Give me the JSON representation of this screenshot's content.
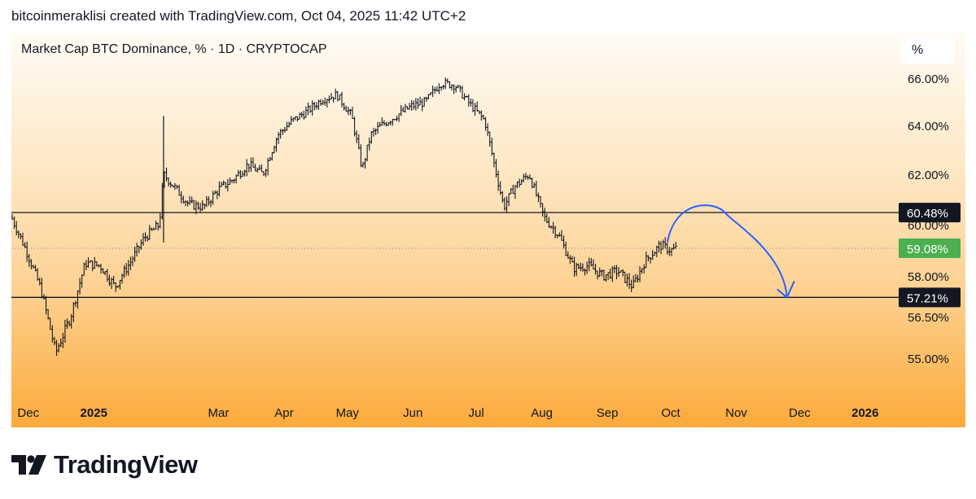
{
  "header": {
    "attribution": "bitcoinmeraklisi created with TradingView.com, Oct 04, 2025 11:42 UTC+2"
  },
  "chart": {
    "title": "Market Cap BTC Dominance, % · 1D · CRYPTOCAP",
    "scale_unit": "%",
    "colors": {
      "candle": "#131722",
      "arrow": "#2962ff",
      "current_price_badge": "#4caf50",
      "level_badge": "#131722",
      "background_top": "#fffcf6",
      "background_bottom": "#fcaa3a"
    }
  },
  "chart_data": {
    "type": "candlestick",
    "title": "Market Cap BTC Dominance, % · 1D · CRYPTOCAP",
    "xlabel": "",
    "ylabel": "",
    "x_tick_labels": [
      "Dec",
      "2025",
      "Mar",
      "Apr",
      "May",
      "Jun",
      "Jul",
      "Aug",
      "Sep",
      "Oct",
      "Nov",
      "Dec",
      "2026"
    ],
    "y_tick_labels": [
      "66.00%",
      "64.00%",
      "62.00%",
      "60.00%",
      "58.00%",
      "56.50%",
      "55.00%"
    ],
    "y_ticks": [
      66.0,
      64.0,
      62.0,
      60.0,
      58.0,
      56.5,
      55.0
    ],
    "ylim": [
      53.9,
      67.2
    ],
    "x_range": [
      "2024-11-23",
      "2026-01-08"
    ],
    "grid": false,
    "legend": "none",
    "horizontal_levels": [
      {
        "value": 60.48,
        "label": "60.48%",
        "style": "solid"
      },
      {
        "value": 57.21,
        "label": "57.21%",
        "style": "solid"
      }
    ],
    "current_price": {
      "value": 59.08,
      "label": "59.08%",
      "style": "dotted"
    },
    "series": [
      {
        "x": [
          "2024-11-23",
          "2024-11-30",
          "2024-12-07",
          "2024-12-14",
          "2024-12-21",
          "2024-12-28",
          "2025-01-04",
          "2025-01-11",
          "2025-01-18",
          "2025-01-25",
          "2025-02-01",
          "2025-02-03",
          "2025-02-08",
          "2025-02-15",
          "2025-02-22",
          "2025-03-01",
          "2025-03-08",
          "2025-03-15",
          "2025-03-22",
          "2025-03-29",
          "2025-04-05",
          "2025-04-12",
          "2025-04-19",
          "2025-04-26",
          "2025-05-03",
          "2025-05-08",
          "2025-05-12",
          "2025-05-17",
          "2025-05-24",
          "2025-05-31",
          "2025-06-07",
          "2025-06-14",
          "2025-06-21",
          "2025-06-27",
          "2025-07-05",
          "2025-07-10",
          "2025-07-14",
          "2025-07-19",
          "2025-07-26",
          "2025-08-02",
          "2025-08-09",
          "2025-08-16",
          "2025-08-23",
          "2025-08-30",
          "2025-09-06",
          "2025-09-13",
          "2025-09-19",
          "2025-09-26",
          "2025-10-01",
          "2025-10-04"
        ],
        "y": [
          60.3,
          59.0,
          57.5,
          55.2,
          56.5,
          58.5,
          58.4,
          57.6,
          58.5,
          59.5,
          60.0,
          62.0,
          61.5,
          60.8,
          60.7,
          61.4,
          61.8,
          62.4,
          62.0,
          63.6,
          64.2,
          64.6,
          65.1,
          65.3,
          64.4,
          62.2,
          63.6,
          64.0,
          64.4,
          64.8,
          65.0,
          65.8,
          65.7,
          65.0,
          64.2,
          62.2,
          60.7,
          61.5,
          62.0,
          60.3,
          59.6,
          58.3,
          58.4,
          58.0,
          58.2,
          57.6,
          58.6,
          59.2,
          59.0,
          59.08
        ]
      }
    ],
    "annotations": [
      {
        "type": "arrow",
        "shape": "arc",
        "direction": "down",
        "from_value": 59.3,
        "peak_value": 60.48,
        "to_value": 57.21
      }
    ]
  },
  "footer": {
    "logo_text": "TradingView"
  }
}
